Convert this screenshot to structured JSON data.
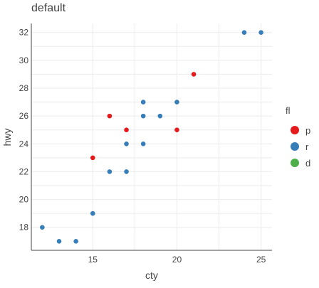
{
  "chart_data": {
    "type": "scatter",
    "title": "default",
    "xlabel": "cty",
    "ylabel": "hwy",
    "xlim": [
      11.35,
      25.65
    ],
    "ylim": [
      16.35,
      32.65
    ],
    "xticks": [
      15,
      20,
      25
    ],
    "yticks": [
      18,
      20,
      22,
      24,
      26,
      28,
      30,
      32
    ],
    "grid": true,
    "legend": {
      "title": "fl",
      "position": "right",
      "entries": [
        {
          "key": "p",
          "label": "p",
          "color": "#e41a1c"
        },
        {
          "key": "r",
          "label": "r",
          "color": "#377eb8"
        },
        {
          "key": "d",
          "label": "d",
          "color": "#4daf4a"
        }
      ]
    },
    "series": [
      {
        "name": "p",
        "color": "#e41a1c",
        "points": [
          {
            "x": 15,
            "y": 23
          },
          {
            "x": 16,
            "y": 26
          },
          {
            "x": 17,
            "y": 25
          },
          {
            "x": 20,
            "y": 25
          },
          {
            "x": 21,
            "y": 29
          }
        ]
      },
      {
        "name": "r",
        "color": "#377eb8",
        "points": [
          {
            "x": 12,
            "y": 18
          },
          {
            "x": 13,
            "y": 17
          },
          {
            "x": 14,
            "y": 17
          },
          {
            "x": 15,
            "y": 19
          },
          {
            "x": 16,
            "y": 22
          },
          {
            "x": 17,
            "y": 22
          },
          {
            "x": 17,
            "y": 24
          },
          {
            "x": 18,
            "y": 24
          },
          {
            "x": 18,
            "y": 26
          },
          {
            "x": 18,
            "y": 27
          },
          {
            "x": 19,
            "y": 26
          },
          {
            "x": 20,
            "y": 27
          },
          {
            "x": 24,
            "y": 32
          },
          {
            "x": 25,
            "y": 32
          }
        ]
      },
      {
        "name": "d",
        "color": "#4daf4a",
        "points": []
      }
    ]
  }
}
